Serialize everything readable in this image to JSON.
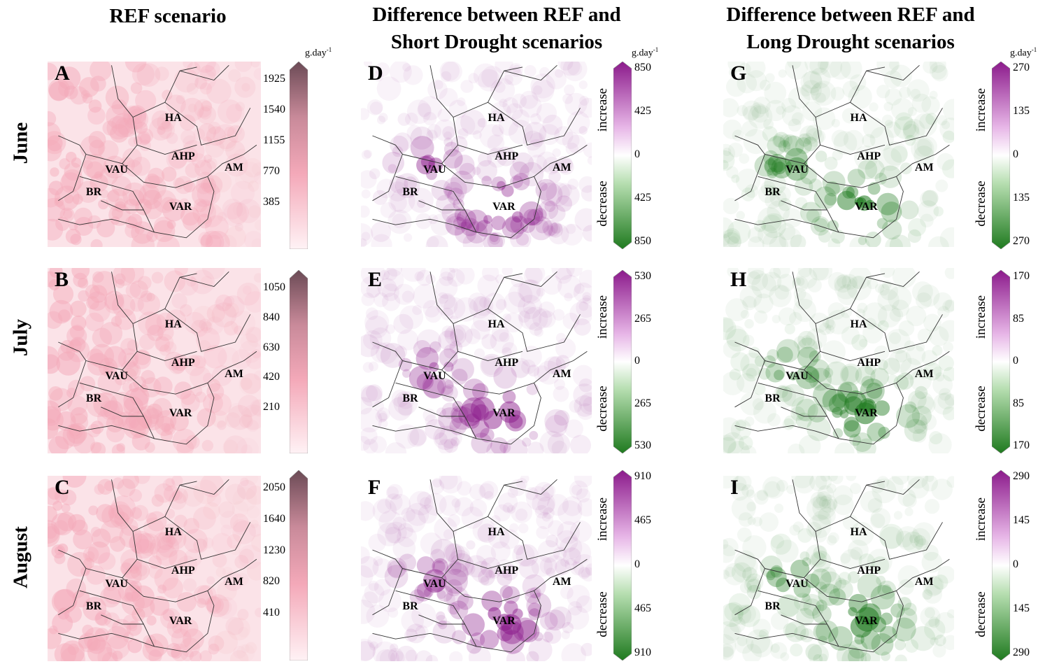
{
  "columns": [
    {
      "title_line1": "REF scenario",
      "title_line2": ""
    },
    {
      "title_line1": "Difference between REF and",
      "title_line2": "Short Drought scenarios"
    },
    {
      "title_line1": "Difference between REF and",
      "title_line2": "Long Drought scenarios"
    }
  ],
  "rows": [
    "June",
    "July",
    "August"
  ],
  "unit_base": "g.day",
  "unit_exp": "-1",
  "side_labels": {
    "increase": "increase",
    "decrease": "decrease"
  },
  "regions": [
    "HA",
    "AHP",
    "AM",
    "VAU",
    "BR",
    "VAR"
  ],
  "colors": {
    "ref": "#f4a9b9",
    "increase": "#8b1a8b",
    "decrease": "#1f7a1f",
    "neutral": "#ffffff"
  },
  "panels": [
    {
      "letter": "A",
      "colorbar": "ref",
      "ticks": [
        "1925",
        "1540",
        "1155",
        "770",
        "385"
      ]
    },
    {
      "letter": "D",
      "colorbar": "diverging",
      "ticks": [
        "850",
        "425",
        "0",
        "425",
        "850"
      ]
    },
    {
      "letter": "G",
      "colorbar": "diverging",
      "ticks": [
        "270",
        "135",
        "0",
        "135",
        "270"
      ]
    },
    {
      "letter": "B",
      "colorbar": "ref",
      "ticks": [
        "1050",
        "840",
        "630",
        "420",
        "210"
      ]
    },
    {
      "letter": "E",
      "colorbar": "diverging",
      "ticks": [
        "530",
        "265",
        "0",
        "265",
        "530"
      ]
    },
    {
      "letter": "H",
      "colorbar": "diverging",
      "ticks": [
        "170",
        "85",
        "0",
        "85",
        "170"
      ]
    },
    {
      "letter": "C",
      "colorbar": "ref",
      "ticks": [
        "2050",
        "1640",
        "1230",
        "820",
        "410"
      ]
    },
    {
      "letter": "F",
      "colorbar": "diverging",
      "ticks": [
        "910",
        "465",
        "0",
        "465",
        "910"
      ]
    },
    {
      "letter": "I",
      "colorbar": "diverging",
      "ticks": [
        "290",
        "145",
        "0",
        "145",
        "290"
      ]
    }
  ]
}
